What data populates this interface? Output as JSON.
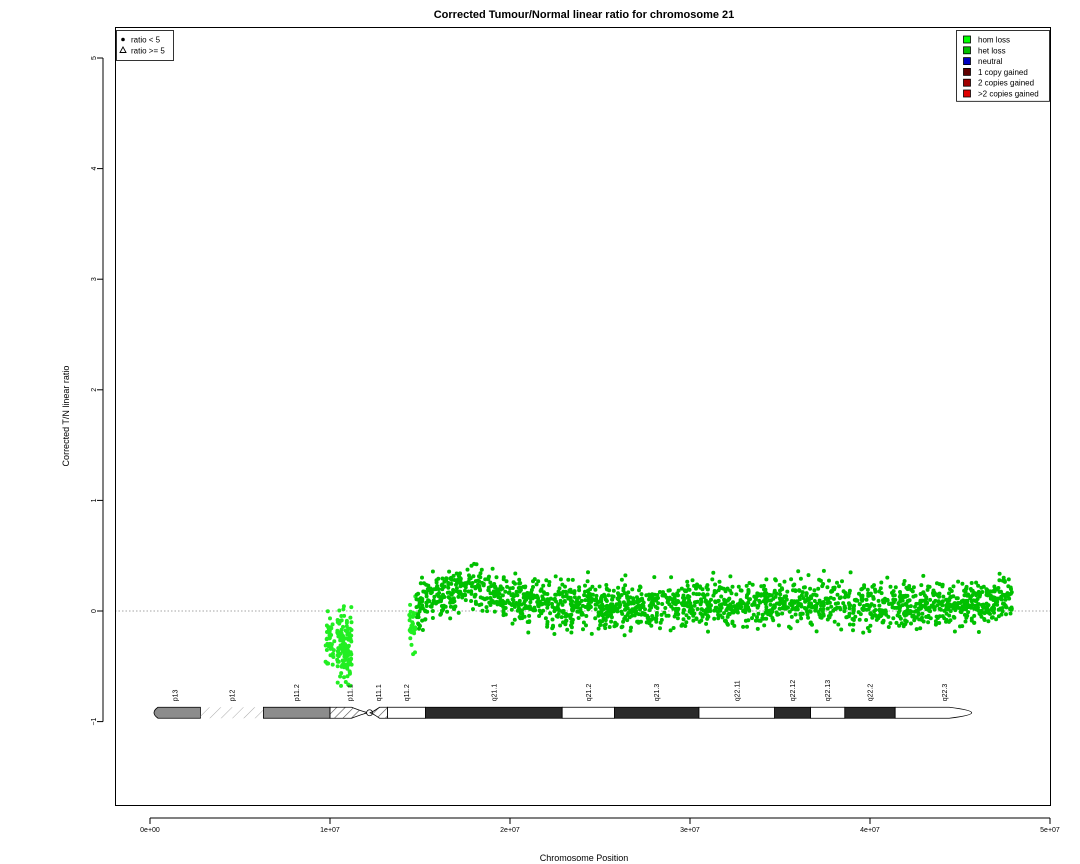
{
  "chart_data": {
    "type": "scatter",
    "title": "Corrected Tumour/Normal linear ratio for chromosome  21",
    "xlabel": "Chromosome Position",
    "ylabel": "Corrected T/N linear ratio",
    "xlim": [
      -2000000,
      50000000
    ],
    "ylim": [
      -1.75,
      5.3
    ],
    "x_ticks": [
      {
        "value": 0,
        "label": "0e+00"
      },
      {
        "value": 10000000,
        "label": "1e+07"
      },
      {
        "value": 20000000,
        "label": "2e+07"
      },
      {
        "value": 30000000,
        "label": "3e+07"
      },
      {
        "value": 40000000,
        "label": "4e+07"
      },
      {
        "value": 50000000,
        "label": "5e+07"
      }
    ],
    "y_ticks": [
      {
        "value": -1,
        "label": "−1"
      },
      {
        "value": 0,
        "label": "0"
      },
      {
        "value": 1,
        "label": "1"
      },
      {
        "value": 2,
        "label": "2"
      },
      {
        "value": 3,
        "label": "3"
      },
      {
        "value": 4,
        "label": "4"
      },
      {
        "value": 5,
        "label": "5"
      }
    ],
    "reference_line": {
      "y": 0,
      "style": "dotted",
      "color": "#888888"
    },
    "shape_legend": {
      "position": "top-left",
      "entries": [
        {
          "shape": "dot",
          "label": "ratio < 5"
        },
        {
          "shape": "triangle",
          "label": "ratio >= 5"
        }
      ]
    },
    "color_legend": {
      "position": "top-right",
      "entries": [
        {
          "label": "hom loss",
          "color": "#00ff00"
        },
        {
          "label": "het loss",
          "color": "#00c000"
        },
        {
          "label": "neutral",
          "color": "#0000c0"
        },
        {
          "label": "1 copy gained",
          "color": "#600000"
        },
        {
          "label": "2 copies gained",
          "color": "#a00000"
        },
        {
          "label": ">2 copies gained",
          "color": "#e00000"
        }
      ]
    },
    "series": [
      {
        "name": "hom loss",
        "color": "#22ee22",
        "segments": [
          {
            "x_range": [
              9700000,
              10250000
            ],
            "y_center": -0.28,
            "y_spread": 0.22,
            "n": 40
          },
          {
            "x_range": [
              10400000,
              11200000
            ],
            "y_center": -0.32,
            "y_spread": 0.28,
            "n": 130
          },
          {
            "x_range": [
              14400000,
              14750000
            ],
            "y_center": -0.12,
            "y_spread": 0.22,
            "n": 30
          }
        ]
      },
      {
        "name": "het loss",
        "color": "#00c000",
        "trend": [
          {
            "x": 14800000,
            "y": 0.05
          },
          {
            "x": 16000000,
            "y": 0.12
          },
          {
            "x": 17500000,
            "y": 0.22
          },
          {
            "x": 18500000,
            "y": 0.2
          },
          {
            "x": 20000000,
            "y": 0.08
          },
          {
            "x": 24000000,
            "y": 0.05
          },
          {
            "x": 30000000,
            "y": 0.05
          },
          {
            "x": 36000000,
            "y": 0.08
          },
          {
            "x": 40000000,
            "y": 0.06
          },
          {
            "x": 46000000,
            "y": 0.07
          },
          {
            "x": 47900000,
            "y": 0.12
          }
        ],
        "y_spread": 0.12,
        "n": 1900
      }
    ],
    "ideogram": {
      "y": -0.92,
      "bands": [
        {
          "name": "p13",
          "start": 0,
          "end": 2800000,
          "stain": "gpos50"
        },
        {
          "name": "p12",
          "start": 2800000,
          "end": 6300000,
          "stain": "stalk"
        },
        {
          "name": "p11.2",
          "start": 6300000,
          "end": 10000000,
          "stain": "gpos50"
        },
        {
          "name": "p11.1",
          "start": 10000000,
          "end": 12200000,
          "stain": "acen"
        },
        {
          "name": "q11.1",
          "start": 12200000,
          "end": 13200000,
          "stain": "acen"
        },
        {
          "name": "q11.2",
          "start": 13200000,
          "end": 15300000,
          "stain": "gneg"
        },
        {
          "name": "q21.1",
          "start": 15300000,
          "end": 22900000,
          "stain": "gpos100"
        },
        {
          "name": "q21.2",
          "start": 22900000,
          "end": 25800000,
          "stain": "gneg"
        },
        {
          "name": "q21.3",
          "start": 25800000,
          "end": 30500000,
          "stain": "gpos100"
        },
        {
          "name": "q22.11",
          "start": 30500000,
          "end": 34700000,
          "stain": "gneg"
        },
        {
          "name": "q22.12",
          "start": 34700000,
          "end": 36700000,
          "stain": "gpos100"
        },
        {
          "name": "q22.13",
          "start": 36700000,
          "end": 38600000,
          "stain": "gneg"
        },
        {
          "name": "q22.2",
          "start": 38600000,
          "end": 41400000,
          "stain": "gpos100"
        },
        {
          "name": "q22.3",
          "start": 41400000,
          "end": 46900000,
          "stain": "gneg"
        }
      ]
    }
  }
}
